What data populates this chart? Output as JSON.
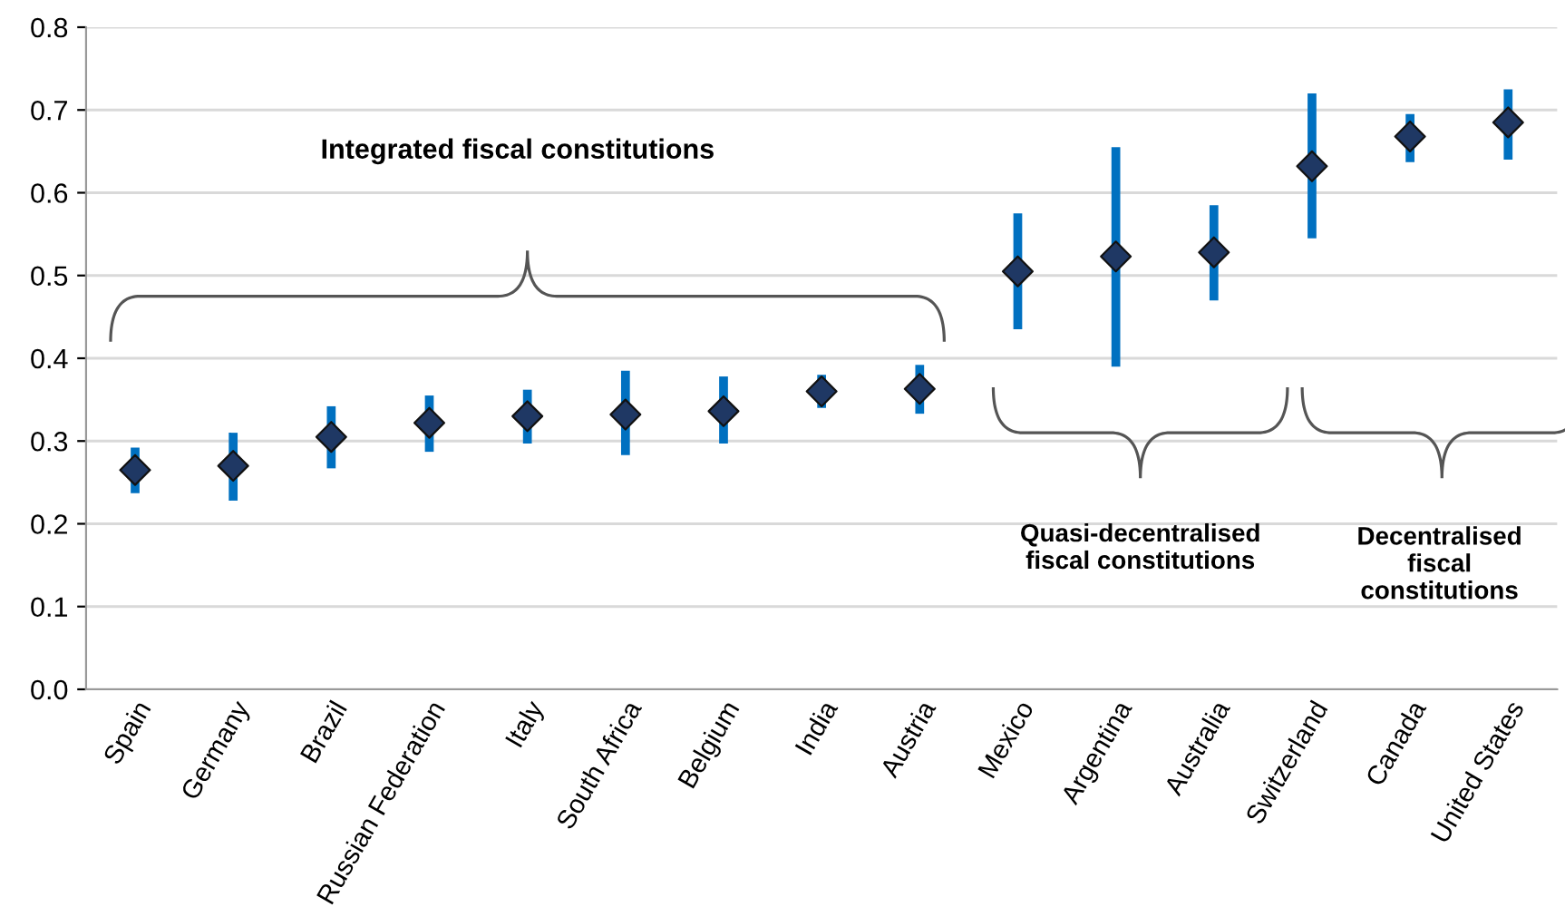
{
  "chart_data": {
    "type": "scatter",
    "categories": [
      "Spain",
      "Germany",
      "Brazil",
      "Russian Federation",
      "Italy",
      "South Africa",
      "Belgium",
      "India",
      "Austria",
      "Mexico",
      "Argentina",
      "Australia",
      "Switzerland",
      "Canada",
      "United States"
    ],
    "series": [
      {
        "color": "#1f3864",
        "values": [
          0.265,
          0.27,
          0.305,
          0.322,
          0.33,
          0.332,
          0.336,
          0.36,
          0.363,
          0.505,
          0.523,
          0.528,
          0.632,
          0.668,
          0.685
        ],
        "errors": [
          [
            0.237,
            0.292
          ],
          [
            0.228,
            0.31
          ],
          [
            0.267,
            0.342
          ],
          [
            0.287,
            0.355
          ],
          [
            0.297,
            0.362
          ],
          [
            0.283,
            0.385
          ],
          [
            0.297,
            0.378
          ],
          [
            0.34,
            0.38
          ],
          [
            0.333,
            0.392
          ],
          [
            0.435,
            0.575
          ],
          [
            0.39,
            0.655
          ],
          [
            0.47,
            0.585
          ],
          [
            0.545,
            0.72
          ],
          [
            0.637,
            0.695
          ],
          [
            0.64,
            0.725
          ]
        ]
      }
    ],
    "annotations": [
      "Integrated fiscal constitutions",
      "Quasi-decentralised\nfiscal constitutions",
      "Decentralised\nfiscal\nconstitutions"
    ],
    "ylim": [
      0,
      0.8
    ],
    "yticks": [
      {
        "value": 0,
        "label": "0.0"
      },
      0.1,
      0.2,
      0.3,
      0.4,
      0.5,
      0.6,
      0.7,
      0.8
    ],
    "grid": "y",
    "marker": "diamond",
    "legend": false
  }
}
